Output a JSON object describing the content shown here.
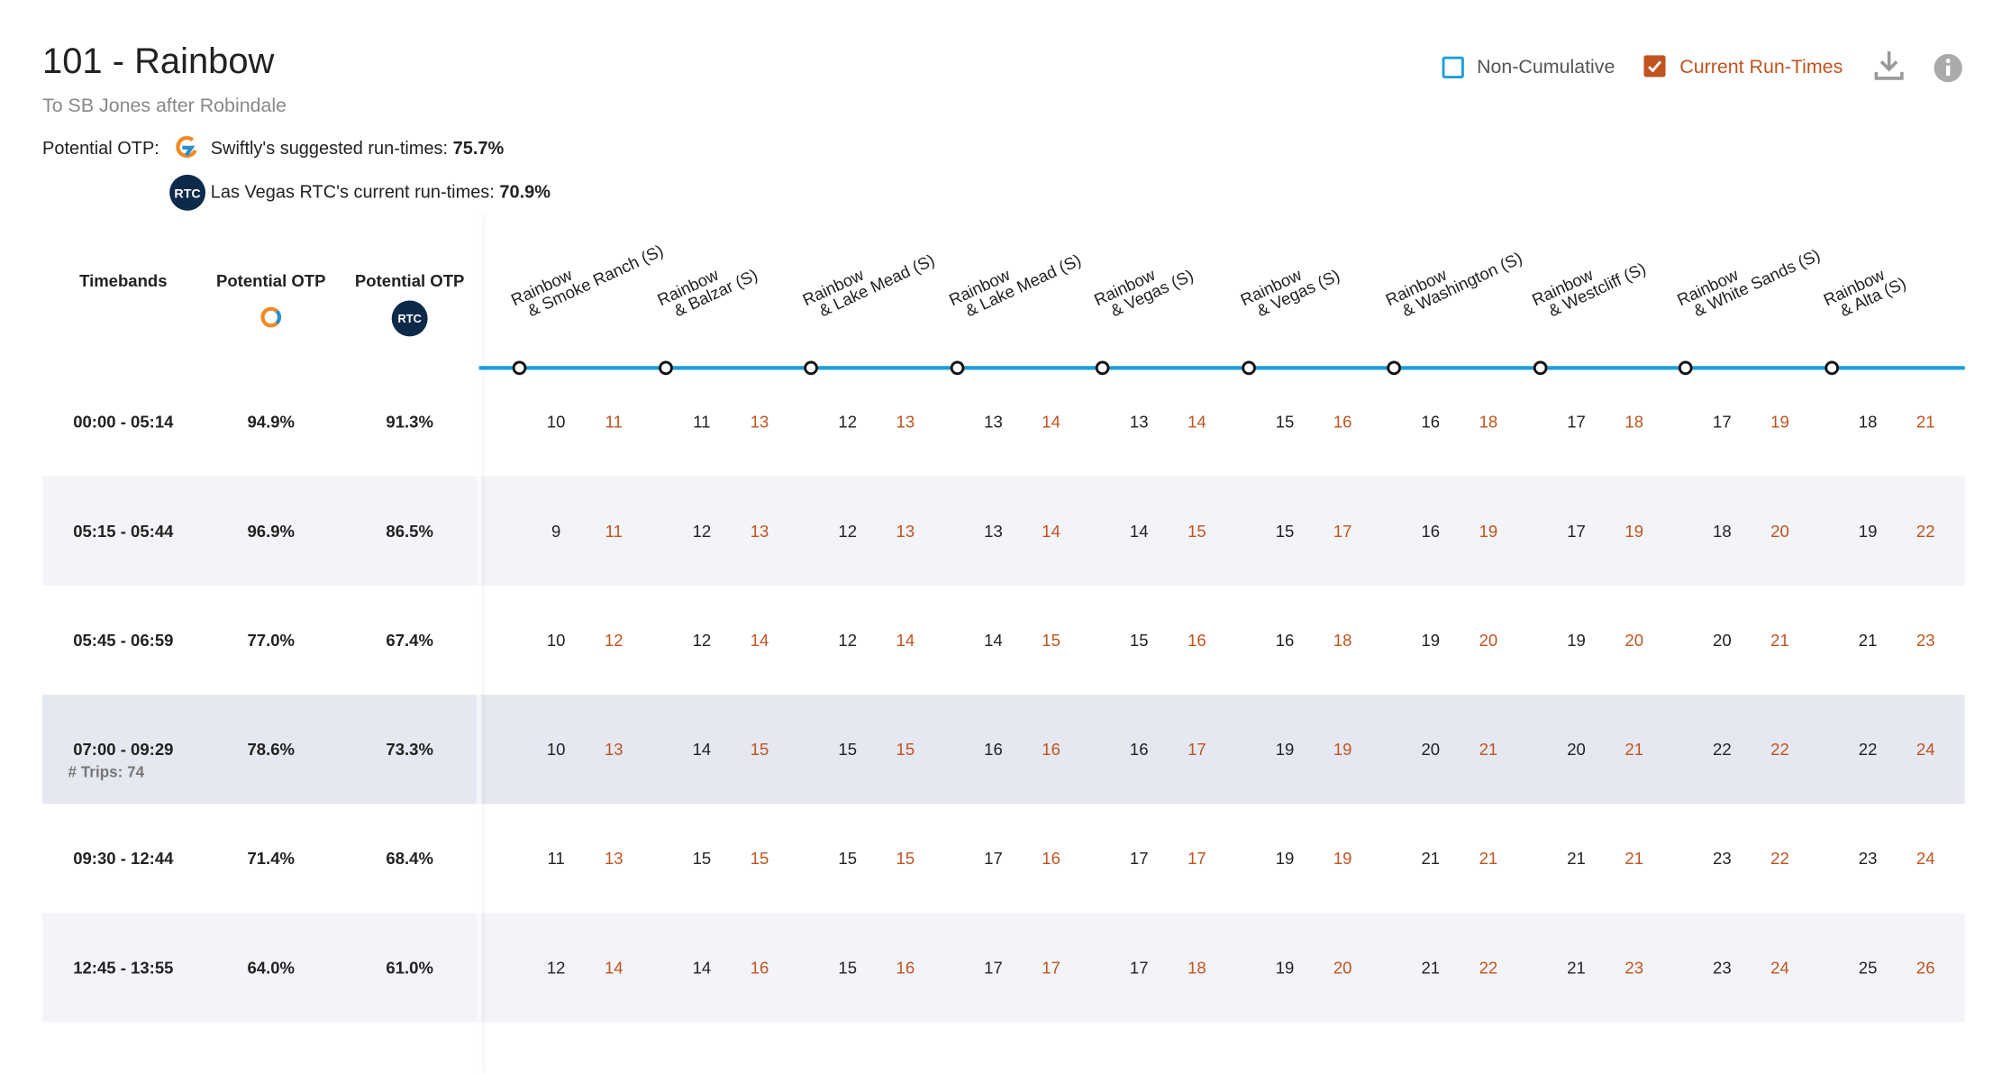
{
  "header": {
    "title": "101 - Rainbow",
    "subtitle": "To SB Jones after Robindale",
    "otp_label": "Potential OTP:",
    "swiftly_text": "Swiftly's suggested run-times:",
    "swiftly_value": "75.7%",
    "rtc_text": "Las Vegas RTC's current run-times:",
    "rtc_value": "70.9%",
    "rtc_logo": "RTC"
  },
  "controls": {
    "non_cumulative": {
      "label": "Non-Cumulative",
      "checked": false
    },
    "current_run_times": {
      "label": "Current Run-Times",
      "checked": true
    }
  },
  "table": {
    "columns": [
      "Timebands",
      "Potential OTP",
      "Potential OTP"
    ],
    "stops": [
      {
        "line1": "Rainbow",
        "line2": "& Smoke Ranch (S)"
      },
      {
        "line1": "Rainbow",
        "line2": "& Balzar (S)"
      },
      {
        "line1": "Rainbow",
        "line2": "& Lake Mead (S)"
      },
      {
        "line1": "Rainbow",
        "line2": "& Lake Mead (S)"
      },
      {
        "line1": "Rainbow",
        "line2": "& Vegas (S)"
      },
      {
        "line1": "Rainbow",
        "line2": "& Vegas (S)"
      },
      {
        "line1": "Rainbow",
        "line2": "& Washington (S)"
      },
      {
        "line1": "Rainbow",
        "line2": "& Westcliff (S)"
      },
      {
        "line1": "Rainbow",
        "line2": "& White Sands (S)"
      },
      {
        "line1": "Rainbow",
        "line2": "& Alta (S)"
      }
    ],
    "rows": [
      {
        "timeband": "00:00 - 05:14",
        "swiftly_otp": "94.9%",
        "rtc_otp": "91.3%",
        "times": [
          [
            10,
            11
          ],
          [
            11,
            13
          ],
          [
            12,
            13
          ],
          [
            13,
            14
          ],
          [
            13,
            14
          ],
          [
            15,
            16
          ],
          [
            16,
            18
          ],
          [
            17,
            18
          ],
          [
            17,
            19
          ],
          [
            18,
            21
          ]
        ]
      },
      {
        "timeband": "05:15 - 05:44",
        "swiftly_otp": "96.9%",
        "rtc_otp": "86.5%",
        "times": [
          [
            9,
            11
          ],
          [
            12,
            13
          ],
          [
            12,
            13
          ],
          [
            13,
            14
          ],
          [
            14,
            15
          ],
          [
            15,
            17
          ],
          [
            16,
            19
          ],
          [
            17,
            19
          ],
          [
            18,
            20
          ],
          [
            19,
            22
          ]
        ]
      },
      {
        "timeband": "05:45 - 06:59",
        "swiftly_otp": "77.0%",
        "rtc_otp": "67.4%",
        "times": [
          [
            10,
            12
          ],
          [
            12,
            14
          ],
          [
            12,
            14
          ],
          [
            14,
            15
          ],
          [
            15,
            16
          ],
          [
            16,
            18
          ],
          [
            19,
            20
          ],
          [
            19,
            20
          ],
          [
            20,
            21
          ],
          [
            21,
            23
          ]
        ]
      },
      {
        "timeband": "07:00 - 09:29",
        "trips": "# Trips: 74",
        "swiftly_otp": "78.6%",
        "rtc_otp": "73.3%",
        "times": [
          [
            10,
            13
          ],
          [
            14,
            15
          ],
          [
            15,
            15
          ],
          [
            16,
            16
          ],
          [
            16,
            17
          ],
          [
            19,
            19
          ],
          [
            20,
            21
          ],
          [
            20,
            21
          ],
          [
            22,
            22
          ],
          [
            22,
            24
          ]
        ]
      },
      {
        "timeband": "09:30 - 12:44",
        "swiftly_otp": "71.4%",
        "rtc_otp": "68.4%",
        "times": [
          [
            11,
            13
          ],
          [
            15,
            15
          ],
          [
            15,
            15
          ],
          [
            17,
            16
          ],
          [
            17,
            17
          ],
          [
            19,
            19
          ],
          [
            21,
            21
          ],
          [
            21,
            21
          ],
          [
            23,
            22
          ],
          [
            23,
            24
          ]
        ]
      },
      {
        "timeband": "12:45 - 13:55",
        "swiftly_otp": "64.0%",
        "rtc_otp": "61.0%",
        "times": [
          [
            12,
            14
          ],
          [
            14,
            16
          ],
          [
            15,
            16
          ],
          [
            17,
            17
          ],
          [
            17,
            18
          ],
          [
            19,
            20
          ],
          [
            21,
            22
          ],
          [
            21,
            23
          ],
          [
            23,
            24
          ],
          [
            25,
            26
          ]
        ]
      }
    ]
  }
}
